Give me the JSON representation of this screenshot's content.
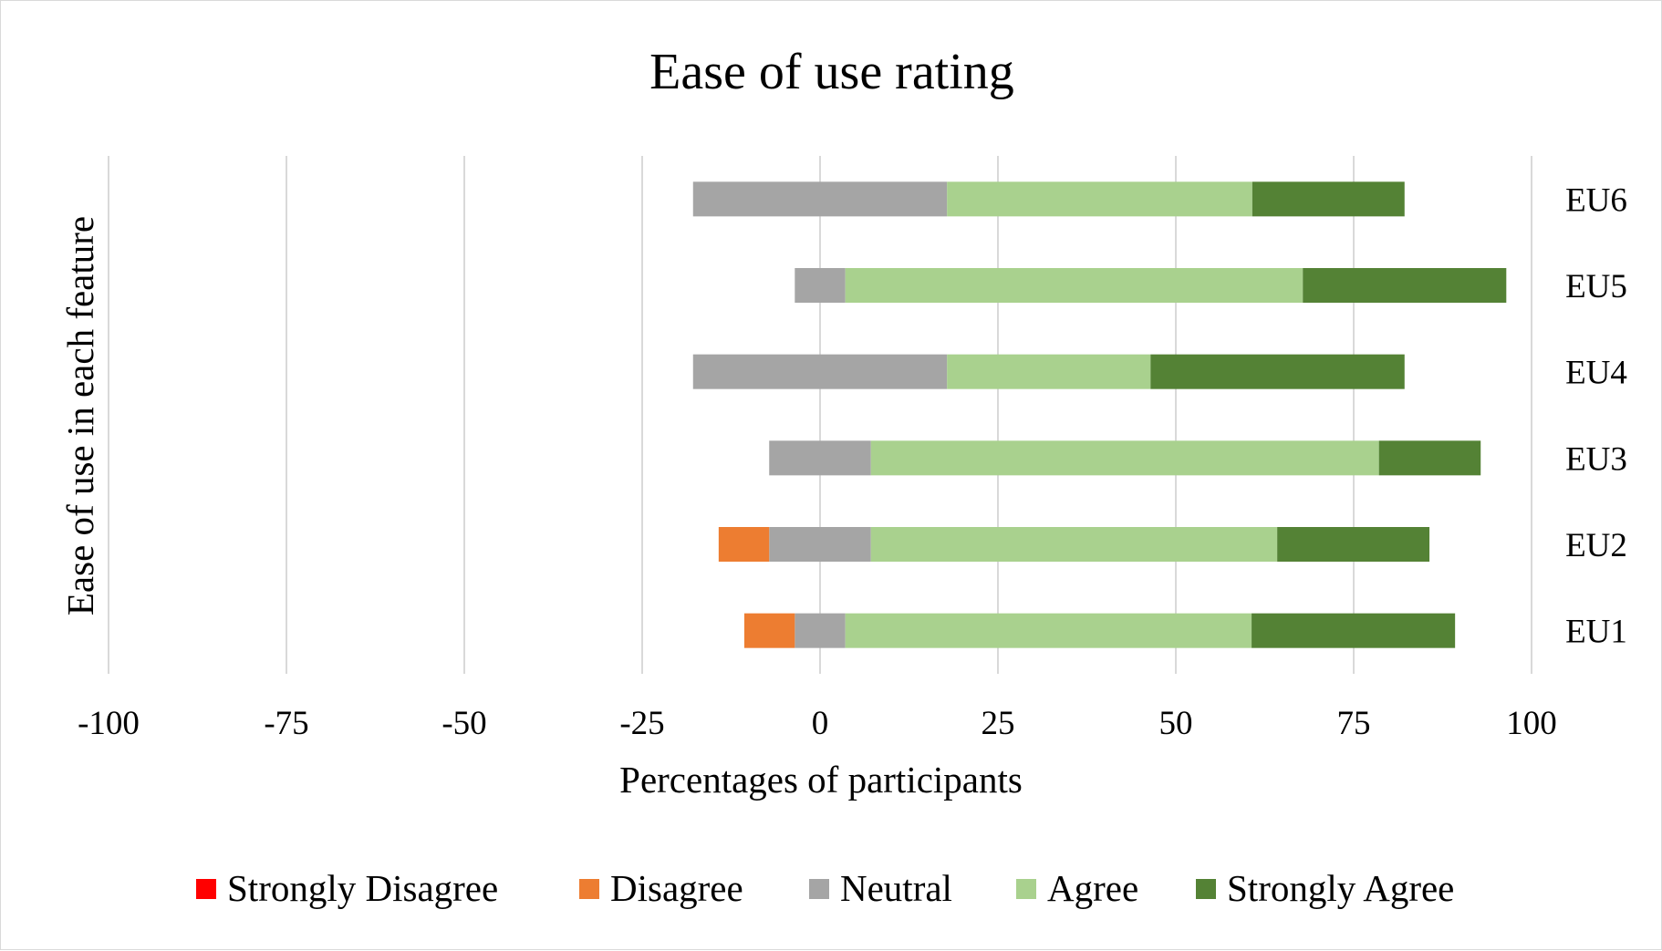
{
  "chart_data": {
    "type": "bar",
    "orientation": "horizontal",
    "stacking": "diverging",
    "title": "Ease of use rating",
    "xlabel": "Percentages of participants",
    "ylabel": "Ease of use in each feature",
    "xlim": [
      -100,
      100
    ],
    "xticks": [
      -100,
      -75,
      -50,
      -25,
      0,
      25,
      50,
      75,
      100
    ],
    "xtick_labels": [
      "-100",
      "-75",
      "-50",
      "-25",
      "0",
      "25",
      "50",
      "75",
      "100"
    ],
    "grid": "vertical",
    "legend_position": "bottom",
    "categories": [
      "EU1",
      "EU2",
      "EU3",
      "EU4",
      "EU5",
      "EU6"
    ],
    "series": [
      {
        "name": "Strongly Disagree",
        "color": "#ff0000",
        "values": [
          0,
          0,
          0,
          0,
          0,
          0
        ]
      },
      {
        "name": "Disagree",
        "color": "#ed7d31",
        "values": [
          7.1,
          7.1,
          0,
          0,
          0,
          0
        ]
      },
      {
        "name": "Neutral",
        "color": "#a5a5a5",
        "values": [
          7.1,
          14.3,
          14.3,
          35.7,
          7.1,
          35.7
        ]
      },
      {
        "name": "Agree",
        "color": "#a9d18e",
        "values": [
          57.1,
          57.1,
          71.4,
          28.6,
          64.3,
          42.9
        ]
      },
      {
        "name": "Strongly Agree",
        "color": "#548235",
        "values": [
          28.6,
          21.4,
          14.3,
          35.7,
          28.6,
          21.4
        ]
      }
    ]
  }
}
